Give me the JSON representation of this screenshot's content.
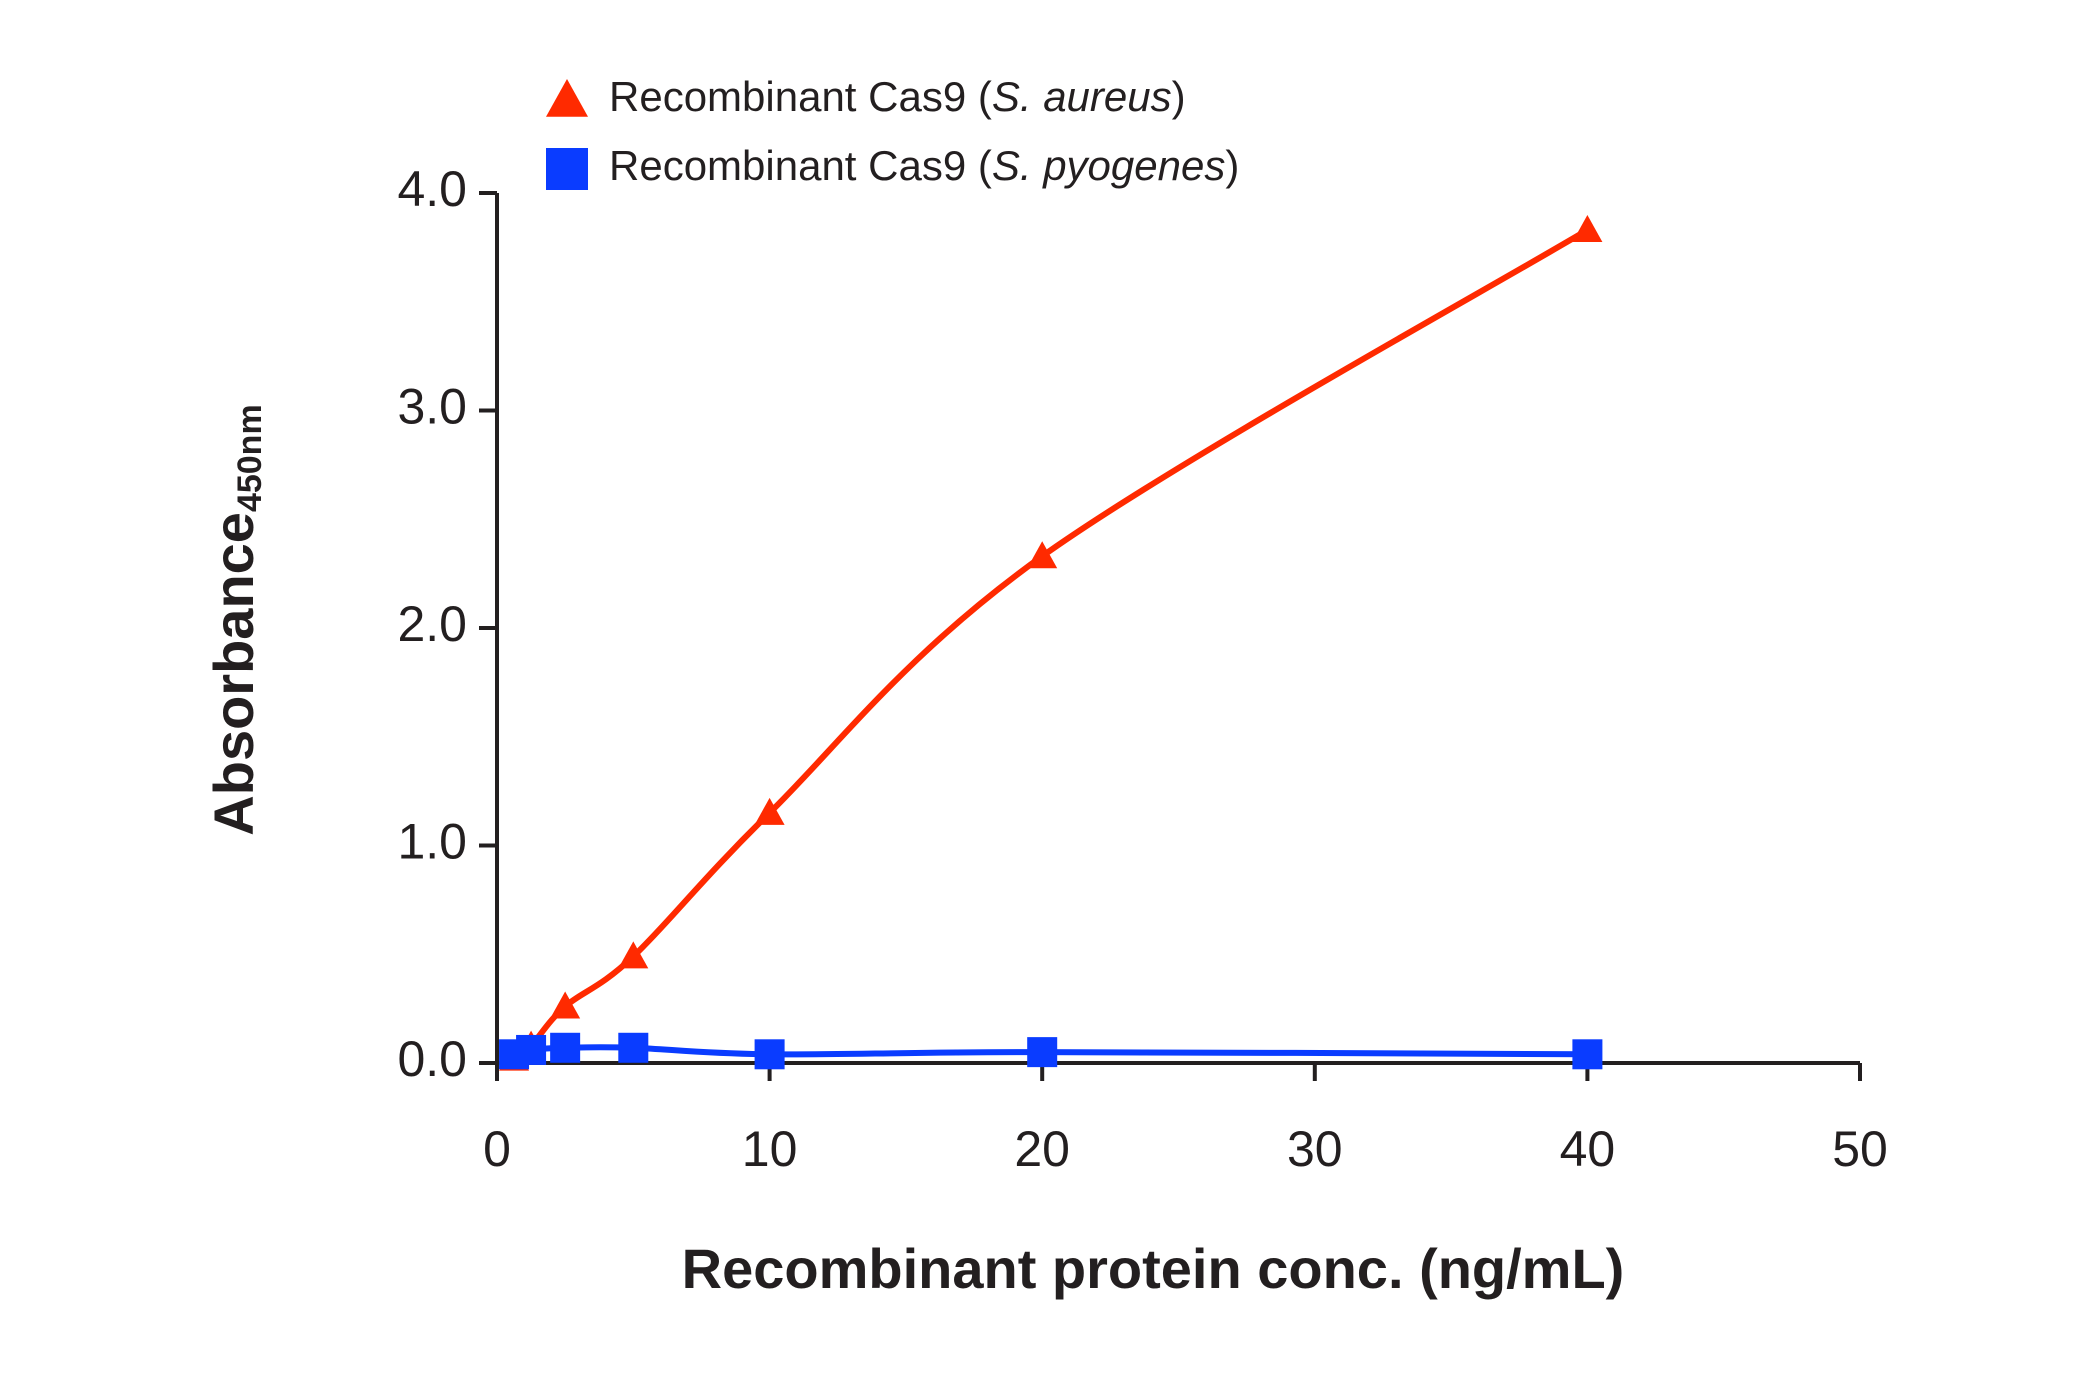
{
  "chart_data": {
    "type": "line",
    "x_label": "Recombinant protein conc. (ng/mL)",
    "y_label": "Absorbance",
    "y_label_subscript": "450nm",
    "series": [
      {
        "name": "Recombinant Cas9 (S. aureus)",
        "color": "#ff2a00",
        "marker": "triangle",
        "x": [
          0.625,
          1.25,
          2.5,
          5,
          10,
          20,
          40
        ],
        "values": [
          0.02,
          0.08,
          0.26,
          0.49,
          1.15,
          2.33,
          3.83
        ]
      },
      {
        "name": "Recombinant Cas9 (S. pyogenes)",
        "color": "#0a3cff",
        "marker": "square",
        "x": [
          0.625,
          1.25,
          2.5,
          5,
          10,
          20,
          40
        ],
        "values": [
          0.04,
          0.06,
          0.07,
          0.07,
          0.04,
          0.05,
          0.04
        ]
      }
    ],
    "xlim": [
      0,
      50
    ],
    "xticks": [
      0,
      10,
      20,
      30,
      40,
      50
    ],
    "ylim": [
      0,
      4
    ],
    "yticks": [
      {
        "value": 0,
        "label": "0.0"
      },
      {
        "value": 1,
        "label": "1.0"
      },
      {
        "value": 2,
        "label": "2.0"
      },
      {
        "value": 3,
        "label": "3.0"
      },
      {
        "value": 4,
        "label": "4.0"
      }
    ],
    "grid": false
  }
}
